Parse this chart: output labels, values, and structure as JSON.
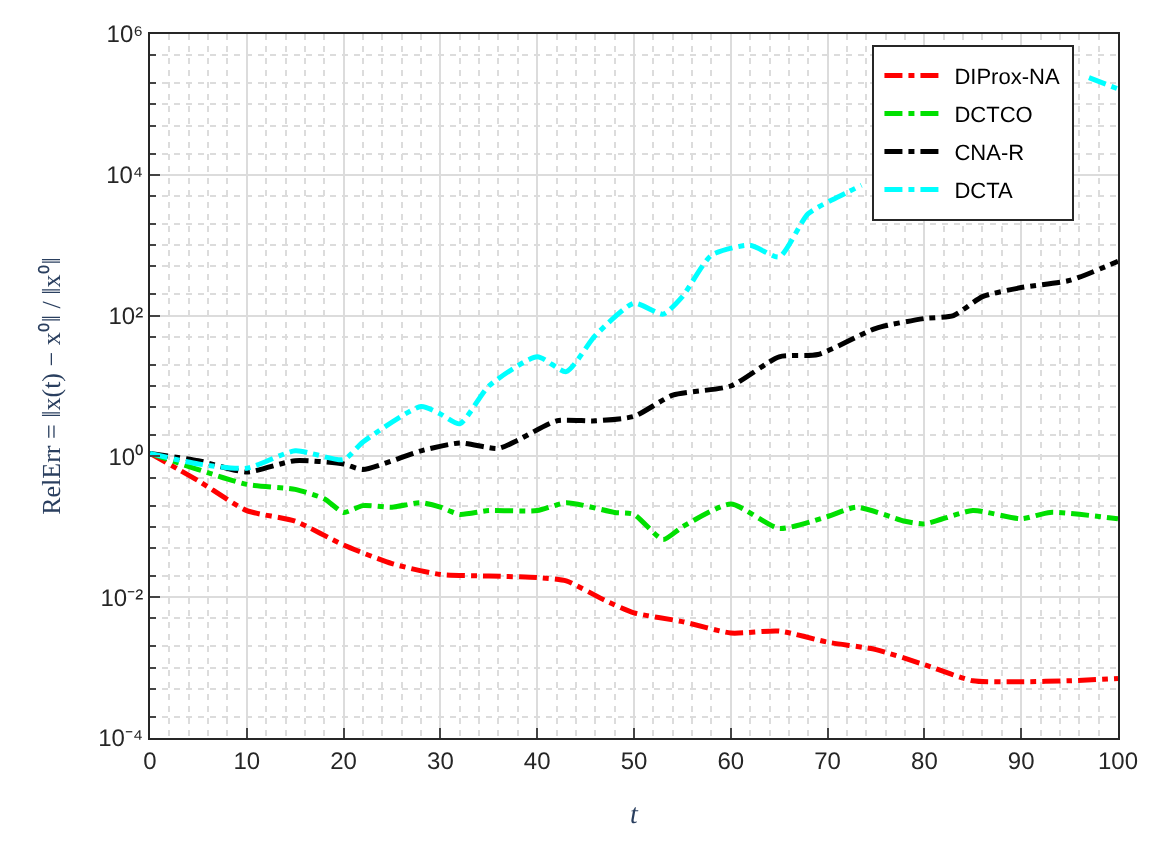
{
  "chart_data": {
    "type": "line",
    "xlabel": "t",
    "ylabel": "RelErr = ‖x(t) − x⁰‖ / ‖x⁰‖",
    "xlim": [
      0,
      100
    ],
    "xticks": [
      0,
      10,
      20,
      30,
      40,
      50,
      60,
      70,
      80,
      90,
      100
    ],
    "ylim": [
      0.0001,
      1000000
    ],
    "yticks": [
      {
        "value": 0.0001,
        "label": "10⁻⁴"
      },
      {
        "value": 0.01,
        "label": "10⁻²"
      },
      {
        "value": 1,
        "label": "10⁰"
      },
      {
        "value": 100,
        "label": "10²"
      },
      {
        "value": 10000,
        "label": "10⁴"
      },
      {
        "value": 1000000,
        "label": "10⁶"
      }
    ],
    "log": "y",
    "grid": true,
    "legend": "top right",
    "line_style": "dashed",
    "marker": "none",
    "series": [
      {
        "name": "DIProx-NA",
        "color": "#ff0000",
        "x": [
          0,
          5,
          10,
          15,
          20,
          25,
          30,
          35,
          40,
          43,
          47,
          50,
          55,
          60,
          65,
          70,
          75,
          80,
          85,
          90,
          95,
          100
        ],
        "values": [
          1.1,
          0.45,
          0.17,
          0.12,
          0.055,
          0.03,
          0.021,
          0.02,
          0.019,
          0.017,
          0.009,
          0.006,
          0.0045,
          0.0031,
          0.0033,
          0.0023,
          0.0018,
          0.0011,
          0.00065,
          0.00063,
          0.00065,
          0.0007
        ]
      },
      {
        "name": "DCTCO",
        "color": "#00e000",
        "x": [
          0,
          5,
          10,
          15,
          18,
          20,
          22,
          25,
          28,
          30,
          32,
          35,
          40,
          43,
          48,
          50,
          53,
          55,
          60,
          65,
          70,
          73,
          78,
          80,
          85,
          90,
          93,
          100
        ],
        "values": [
          1.1,
          0.65,
          0.4,
          0.34,
          0.25,
          0.16,
          0.2,
          0.19,
          0.22,
          0.19,
          0.15,
          0.17,
          0.17,
          0.22,
          0.16,
          0.15,
          0.066,
          0.1,
          0.21,
          0.095,
          0.14,
          0.19,
          0.12,
          0.11,
          0.17,
          0.13,
          0.16,
          0.13
        ]
      },
      {
        "name": "CNA-R",
        "color": "#000000",
        "x": [
          0,
          5,
          10,
          15,
          20,
          22,
          28,
          32,
          36,
          38,
          42,
          46,
          50,
          54,
          60,
          65,
          69,
          75,
          80,
          83,
          86,
          90,
          95,
          100
        ],
        "values": [
          1.1,
          0.87,
          0.6,
          0.87,
          0.78,
          0.65,
          1.2,
          1.55,
          1.3,
          1.7,
          3.2,
          3.2,
          3.7,
          7.4,
          10,
          26,
          28,
          66,
          91,
          100,
          186,
          250,
          316,
          590
        ]
      },
      {
        "name": "DCTA",
        "color": "#00ffff",
        "x": [
          0,
          5,
          10,
          15,
          20,
          22,
          28,
          30,
          32,
          35,
          40,
          43,
          46,
          50,
          53,
          55,
          58,
          62,
          65,
          68,
          72,
          73.5,
          80,
          85,
          90,
          95,
          97,
          100
        ],
        "values": [
          1.1,
          0.78,
          0.68,
          1.2,
          0.9,
          1.6,
          5.1,
          4,
          2.9,
          10,
          26,
          16,
          52,
          150,
          105,
          186,
          720,
          1000,
          680,
          2800,
          5600,
          7100,
          null,
          null,
          null,
          null,
          240000,
          166000
        ]
      }
    ]
  }
}
